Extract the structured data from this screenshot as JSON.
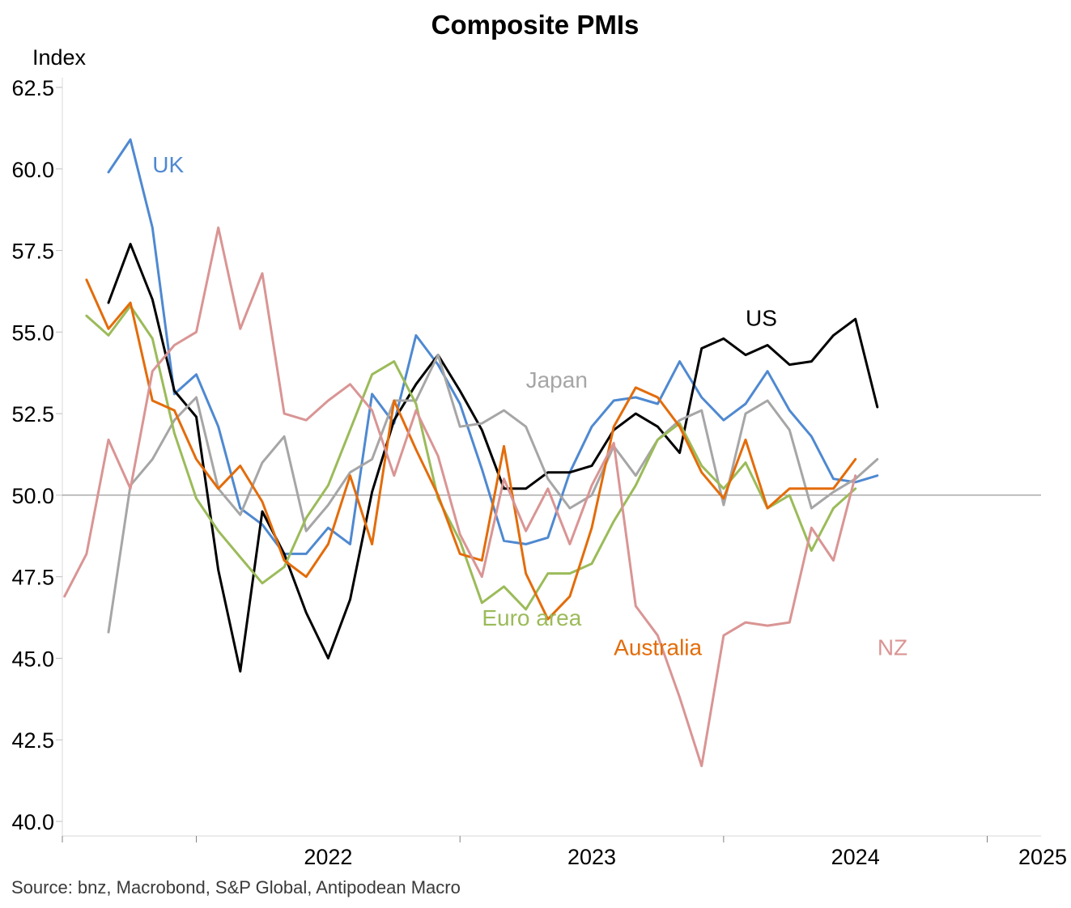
{
  "chart_data": {
    "type": "line",
    "title": "Composite PMIs",
    "ylabel": "Index",
    "xlabel": "",
    "ylim": [
      40.0,
      62.5
    ],
    "y_ticks": [
      "40.0",
      "42.5",
      "45.0",
      "47.5",
      "50.0",
      "52.5",
      "55.0",
      "57.5",
      "60.0",
      "62.5"
    ],
    "x_range": [
      "2021-07",
      "2025-03"
    ],
    "x_ticks": [
      "2022",
      "2023",
      "2024",
      "2025"
    ],
    "reference_line": 50,
    "grid": false,
    "legend": "inline labels",
    "source": "Source: bnz, Macrobond, S&P Global, Antipodean Macro",
    "series": [
      {
        "name": "UK",
        "color": "#4f89d1",
        "start": "2021-09",
        "values": [
          59.9,
          60.9,
          58.2,
          53.1,
          53.7,
          52.1,
          49.6,
          49.1,
          48.2,
          48.2,
          49.0,
          48.5,
          53.1,
          52.2,
          54.9,
          54.0,
          52.8,
          50.8,
          48.6,
          48.5,
          48.7,
          50.7,
          52.1,
          52.9,
          53.0,
          52.8,
          54.1,
          53.0,
          52.3,
          52.8,
          53.8,
          52.6,
          51.8,
          50.5,
          50.4,
          50.6
        ]
      },
      {
        "name": "US",
        "color": "#000000",
        "start": "2021-09",
        "values": [
          55.9,
          57.7,
          56.0,
          53.2,
          52.4,
          47.7,
          44.6,
          49.5,
          48.2,
          46.4,
          45.0,
          46.8,
          50.1,
          52.3,
          53.4,
          54.3,
          53.2,
          52.0,
          50.2,
          50.2,
          50.7,
          50.7,
          50.9,
          52.0,
          52.5,
          52.1,
          51.3,
          54.5,
          54.8,
          54.3,
          54.6,
          54.0,
          54.1,
          54.9,
          55.4,
          52.7
        ]
      },
      {
        "name": "Japan",
        "color": "#a6a6a6",
        "start": "2021-09",
        "values": [
          45.8,
          50.3,
          51.1,
          52.3,
          53.0,
          50.2,
          49.4,
          51.0,
          51.8,
          48.9,
          49.7,
          50.7,
          51.1,
          52.9,
          52.9,
          54.3,
          52.1,
          52.2,
          52.6,
          52.1,
          50.5,
          49.6,
          50.0,
          51.5,
          50.6,
          51.7,
          52.3,
          52.6,
          49.7,
          52.5,
          52.9,
          52.0,
          49.6,
          50.1,
          50.5,
          51.1
        ]
      },
      {
        "name": "Euro area",
        "color": "#9bbb59",
        "start": "2021-08",
        "values": [
          55.5,
          54.9,
          55.8,
          54.8,
          51.9,
          49.9,
          48.9,
          48.1,
          47.3,
          47.8,
          49.3,
          50.3,
          52.0,
          53.7,
          54.1,
          52.8,
          49.9,
          48.6,
          46.7,
          47.2,
          46.5,
          47.6,
          47.6,
          47.9,
          49.2,
          50.3,
          51.7,
          52.2,
          50.9,
          50.2,
          51.0,
          49.6,
          50.0,
          48.3,
          49.6,
          50.2
        ]
      },
      {
        "name": "Australia",
        "color": "#e36c0a",
        "start": "2021-08",
        "values": [
          56.6,
          55.1,
          55.9,
          52.9,
          52.6,
          51.1,
          50.2,
          50.9,
          49.8,
          48.0,
          47.5,
          48.5,
          50.6,
          48.5,
          52.9,
          51.4,
          50.0,
          48.2,
          48.0,
          51.5,
          47.6,
          46.2,
          46.9,
          49.0,
          52.1,
          53.3,
          53.0,
          52.1,
          50.7,
          49.9,
          51.7,
          49.6,
          50.2,
          50.2,
          50.2,
          51.1
        ]
      },
      {
        "name": "NZ",
        "color": "#d99594",
        "start": "2021-07",
        "values": [
          46.9,
          48.2,
          51.7,
          50.2,
          53.8,
          54.6,
          55.0,
          58.2,
          55.1,
          56.8,
          52.5,
          52.3,
          52.9,
          53.4,
          52.6,
          50.6,
          52.6,
          51.2,
          48.8,
          47.5,
          50.5,
          48.9,
          50.2,
          48.5,
          50.3,
          51.6,
          46.6,
          45.7,
          43.8,
          41.7,
          45.7,
          46.1,
          46.0,
          46.1,
          49.0,
          48.0,
          50.6
        ]
      }
    ],
    "series_labels": [
      {
        "name": "UK",
        "text": "UK",
        "at": [
          "2021-11",
          59.9
        ]
      },
      {
        "name": "US",
        "text": "US",
        "at": [
          "2024-02",
          55.2
        ]
      },
      {
        "name": "Japan",
        "text": "Japan",
        "at": [
          "2023-04",
          53.3
        ]
      },
      {
        "name": "Euro area",
        "text": "Euro area",
        "at": [
          "2023-02",
          46.0
        ]
      },
      {
        "name": "Australia",
        "text": "Australia",
        "at": [
          "2023-08",
          45.1
        ]
      },
      {
        "name": "NZ",
        "text": "NZ",
        "at": [
          "2024-08",
          45.1
        ]
      }
    ]
  }
}
